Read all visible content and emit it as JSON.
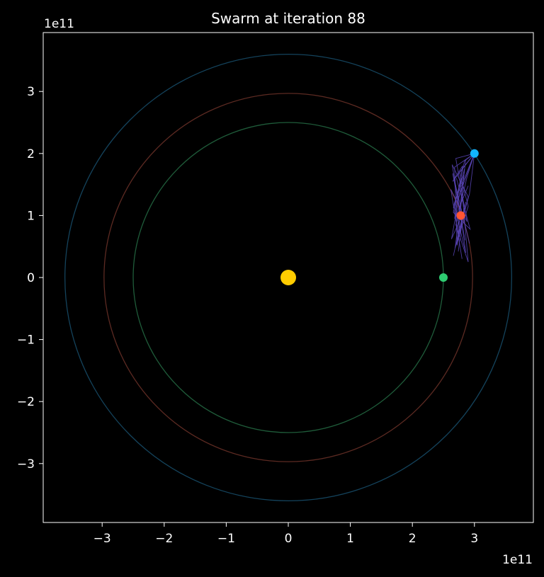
{
  "chart_data": {
    "type": "scatter",
    "title": "Swarm at iteration 88",
    "xlabel": "",
    "ylabel": "",
    "x_offset_label": "1e11",
    "y_offset_label": "1e11",
    "xlim": [
      -3.95,
      3.95
    ],
    "ylim": [
      -3.95,
      3.95
    ],
    "x_ticks": [
      -3,
      -2,
      -1,
      0,
      1,
      2,
      3
    ],
    "y_ticks": [
      -3,
      -2,
      -1,
      0,
      1,
      2,
      3
    ],
    "x_tick_labels": [
      "−3",
      "−2",
      "−1",
      "0",
      "1",
      "2",
      "3"
    ],
    "y_tick_labels": [
      "−3",
      "−2",
      "−1",
      "0",
      "1",
      "2",
      "3"
    ],
    "grid": false,
    "background_color": "#000000",
    "axes_edge_color": "#ffffff",
    "orbits": [
      {
        "radius": 2.5,
        "color": "#1f5c3a"
      },
      {
        "radius": 2.97,
        "color": "#5c2a22"
      },
      {
        "radius": 3.6,
        "color": "#14435c"
      }
    ],
    "bodies": [
      {
        "x": 0,
        "y": 0,
        "color": "#ffcc00",
        "size": "large"
      },
      {
        "x": 2.5,
        "y": 0,
        "color": "#2ecc71",
        "size": "small"
      },
      {
        "x": 2.78,
        "y": 1.0,
        "color": "#ff5533",
        "size": "small"
      },
      {
        "x": 3.0,
        "y": 2.0,
        "color": "#11b5ff",
        "size": "small"
      }
    ],
    "swarm_color": "#5a45b8",
    "swarm_paths": [
      [
        [
          3.0,
          2.0
        ],
        [
          2.68,
          1.78
        ],
        [
          2.72,
          0.52
        ],
        [
          2.86,
          1.22
        ],
        [
          2.66,
          0.35
        ]
      ],
      [
        [
          3.0,
          2.0
        ],
        [
          2.78,
          1.45
        ],
        [
          2.63,
          0.62
        ],
        [
          2.82,
          1.05
        ],
        [
          2.74,
          0.42
        ]
      ],
      [
        [
          3.0,
          2.0
        ],
        [
          2.88,
          1.62
        ],
        [
          2.7,
          0.85
        ],
        [
          2.9,
          0.25
        ],
        [
          2.8,
          1.38
        ]
      ],
      [
        [
          3.0,
          2.0
        ],
        [
          2.73,
          1.25
        ],
        [
          2.85,
          0.6
        ],
        [
          2.65,
          1.68
        ],
        [
          2.92,
          0.55
        ]
      ],
      [
        [
          3.0,
          2.0
        ],
        [
          2.65,
          1.55
        ],
        [
          2.81,
          1.8
        ],
        [
          2.68,
          0.95
        ],
        [
          2.9,
          1.48
        ]
      ],
      [
        [
          3.0,
          2.0
        ],
        [
          2.92,
          1.35
        ],
        [
          2.74,
          0.7
        ],
        [
          2.84,
          1.75
        ],
        [
          2.66,
          1.12
        ]
      ],
      [
        [
          3.0,
          2.0
        ],
        [
          2.7,
          1.92
        ],
        [
          2.88,
          0.9
        ],
        [
          2.62,
          1.42
        ],
        [
          2.8,
          0.3
        ]
      ],
      [
        [
          3.0,
          2.0
        ],
        [
          2.84,
          1.88
        ],
        [
          2.66,
          1.05
        ],
        [
          2.93,
          0.78
        ],
        [
          2.71,
          1.6
        ]
      ],
      [
        [
          3.0,
          2.0
        ],
        [
          2.76,
          1.7
        ],
        [
          2.9,
          1.15
        ],
        [
          2.69,
          0.48
        ],
        [
          2.86,
          1.9
        ]
      ],
      [
        [
          2.78,
          1.0
        ],
        [
          2.64,
          1.82
        ],
        [
          2.9,
          1.3
        ],
        [
          2.72,
          0.58
        ]
      ],
      [
        [
          2.78,
          1.0
        ],
        [
          2.86,
          0.4
        ],
        [
          2.67,
          1.18
        ],
        [
          2.83,
          1.66
        ]
      ]
    ]
  }
}
